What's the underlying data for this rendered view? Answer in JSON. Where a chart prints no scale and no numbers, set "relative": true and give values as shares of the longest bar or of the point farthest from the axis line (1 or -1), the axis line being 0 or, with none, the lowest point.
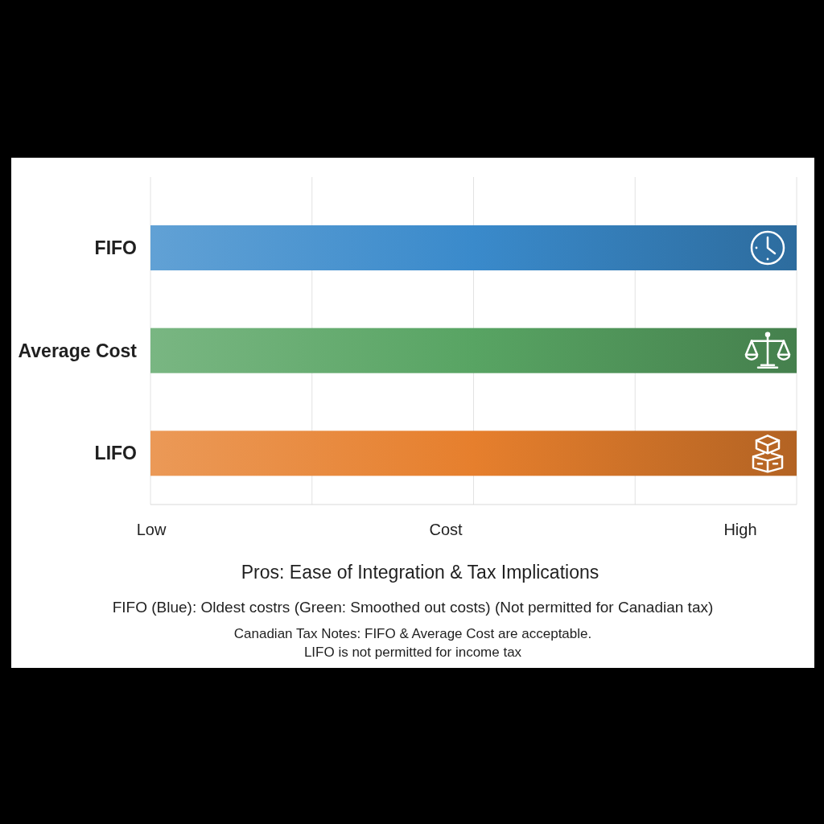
{
  "chart_data": {
    "type": "bar",
    "orientation": "horizontal",
    "relative": true,
    "categories": [
      "FIFO",
      "Average Cost",
      "LIFO"
    ],
    "values": [
      1,
      1,
      1
    ],
    "colors": [
      "#3a8acb",
      "#58a463",
      "#e67f2d"
    ],
    "xlabel": "Cost",
    "grid": "x",
    "title": "Pros: Ease of Integration & Tax Implications",
    "annotations": [
      "Low",
      "High",
      "FIFO (Blue): Oldest costrs (Green: Smoothed out costs) (Not permitted for Canadian tax)",
      "Canadian Tax Notes: FIFO & Average Cost are acceptable.",
      "LIFO is not permitted for income tax"
    ]
  }
}
